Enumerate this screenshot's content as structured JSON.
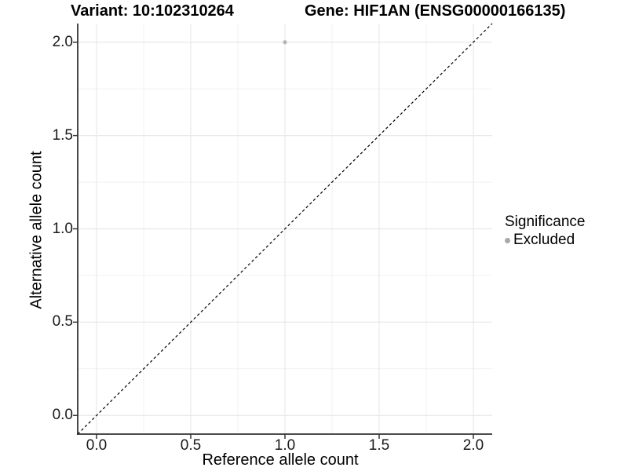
{
  "titles": {
    "left": "Variant: 10:102310264",
    "right": "Gene: HIF1AN (ENSG00000166135)"
  },
  "chart_data": {
    "type": "scatter",
    "xlabel": "Reference allele count",
    "ylabel": "Alternative allele count",
    "xlim": [
      -0.1,
      2.1
    ],
    "ylim": [
      -0.1,
      2.1
    ],
    "x_ticks": [
      0.0,
      0.5,
      1.0,
      1.5,
      2.0
    ],
    "y_ticks": [
      0.0,
      0.5,
      1.0,
      1.5,
      2.0
    ],
    "x_tick_labels": [
      "0.0",
      "0.5",
      "1.0",
      "1.5",
      "2.0"
    ],
    "y_tick_labels": [
      "0.0",
      "0.5",
      "1.0",
      "1.5",
      "2.0"
    ],
    "grid": {
      "show": true,
      "major_color": "#e8e8e8",
      "minor_color": "#f1f1f1"
    },
    "identity_line": {
      "slope": 1,
      "intercept": 0,
      "style": "dashed",
      "color": "#000000"
    },
    "series": [
      {
        "name": "Excluded",
        "color": "#b5b5b5",
        "point_radius": 2.6,
        "points": [
          {
            "x": 1.0,
            "y": 2.0
          }
        ]
      }
    ],
    "legend": {
      "title": "Significance",
      "position": "right",
      "entries": [
        {
          "label": "Excluded",
          "color": "#a8a8a8"
        }
      ]
    },
    "axis_color": "#333333",
    "tick_color": "#333333",
    "text_color": "#1a1a1a"
  }
}
